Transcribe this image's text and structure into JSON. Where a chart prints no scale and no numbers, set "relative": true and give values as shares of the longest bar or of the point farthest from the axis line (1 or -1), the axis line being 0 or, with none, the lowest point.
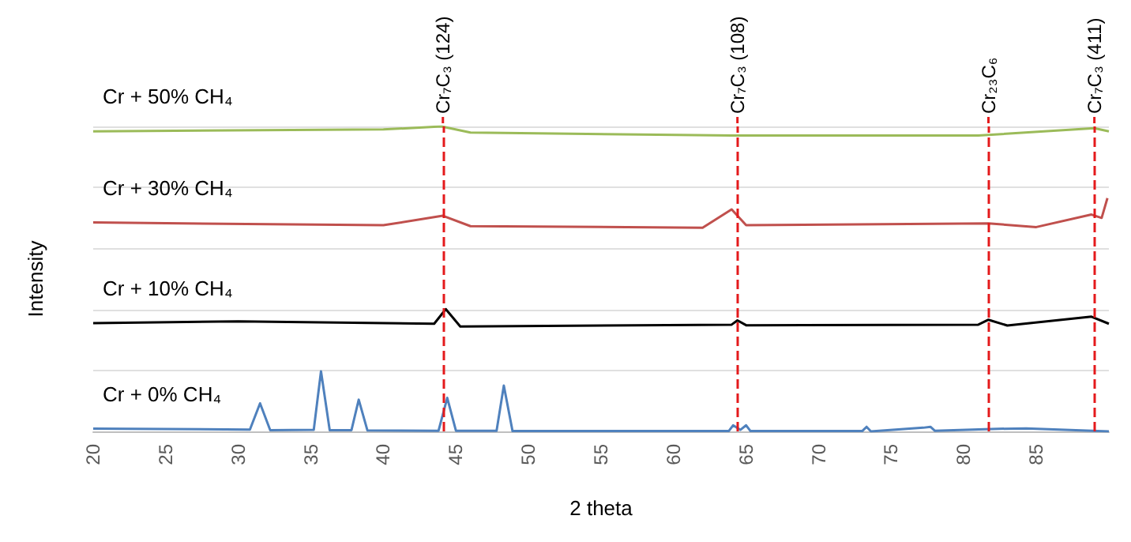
{
  "chart_data": {
    "type": "line",
    "relative": true,
    "xlabel": "2 theta",
    "ylabel": "Intensity",
    "xlim": [
      20,
      90
    ],
    "xticks": [
      20,
      25,
      30,
      35,
      40,
      45,
      50,
      55,
      60,
      65,
      70,
      75,
      80,
      85
    ],
    "grid": "y",
    "legend": false,
    "marker": "none",
    "line_style": "solid",
    "series": [
      {
        "name": "Cr + 0% CH₄",
        "color": "#4f81bd",
        "x": [
          20,
          30.8,
          31.5,
          32.2,
          35.2,
          35.7,
          36.3,
          37.8,
          38.3,
          38.9,
          43.8,
          44.4,
          45,
          47.8,
          48.3,
          48.9,
          63.8,
          64.1,
          64.6,
          65,
          65.3,
          73,
          73.3,
          73.6,
          77.2,
          77.7,
          78,
          81.9,
          84.3,
          90
        ],
        "values": [
          0.009,
          0.006,
          0.092,
          0.004,
          0.005,
          0.197,
          0.004,
          0.004,
          0.104,
          0.003,
          0.002,
          0.11,
          0.002,
          0.002,
          0.15,
          0.001,
          0.001,
          0.02,
          0.005,
          0.02,
          0.001,
          0.001,
          0.015,
          0,
          0.012,
          0.015,
          0.002,
          0.008,
          0.01,
          0
        ]
      },
      {
        "name": "Cr + 10% CH₄",
        "color": "#000000",
        "x": [
          20,
          30,
          43.5,
          44.3,
          45.3,
          64,
          64.4,
          65,
          81,
          81.7,
          83,
          88.8,
          90
        ],
        "values": [
          0.355,
          0.361,
          0.353,
          0.401,
          0.344,
          0.35,
          0.364,
          0.348,
          0.35,
          0.366,
          0.347,
          0.376,
          0.353
        ]
      },
      {
        "name": "Cr + 30% CH₄",
        "color": "#c0504d",
        "x": [
          20,
          40,
          44.1,
          46,
          62,
          64,
          65,
          81.7,
          85,
          88.8,
          89.5,
          89.9
        ],
        "values": [
          0.685,
          0.676,
          0.707,
          0.673,
          0.668,
          0.728,
          0.676,
          0.682,
          0.67,
          0.711,
          0.7,
          0.765
        ]
      },
      {
        "name": "Cr + 50% CH₄",
        "color": "#9bbb59",
        "x": [
          20,
          40,
          44,
          46,
          64,
          81,
          89,
          90
        ],
        "values": [
          0.984,
          0.99,
          1.0,
          0.98,
          0.97,
          0.97,
          0.994,
          0.984
        ]
      }
    ],
    "ref_lines": [
      {
        "axis": "x",
        "value": 44.1,
        "label": "Cr₇C₃ (124)",
        "color": "#e41a1c",
        "line_style": "dashed"
      },
      {
        "axis": "x",
        "value": 64.4,
        "label": "Cr₇C₃ (108)",
        "color": "#e41a1c",
        "line_style": "dashed"
      },
      {
        "axis": "x",
        "value": 81.7,
        "label": "Cr₂₃C₆",
        "color": "#e41a1c",
        "line_style": "dashed"
      },
      {
        "axis": "x",
        "value": 89,
        "label": "Cr₇C₃ (411)",
        "color": "#e41a1c",
        "line_style": "dashed"
      }
    ]
  }
}
